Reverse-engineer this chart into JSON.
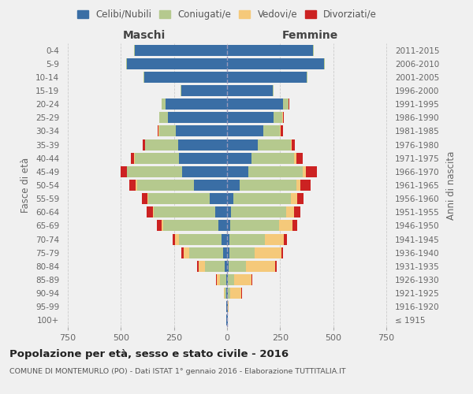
{
  "age_groups": [
    "100+",
    "95-99",
    "90-94",
    "85-89",
    "80-84",
    "75-79",
    "70-74",
    "65-69",
    "60-64",
    "55-59",
    "50-54",
    "45-49",
    "40-44",
    "35-39",
    "30-34",
    "25-29",
    "20-24",
    "15-19",
    "10-14",
    "5-9",
    "0-4"
  ],
  "birth_years": [
    "≤ 1915",
    "1916-1920",
    "1921-1925",
    "1926-1930",
    "1931-1935",
    "1936-1940",
    "1941-1945",
    "1946-1950",
    "1951-1955",
    "1956-1960",
    "1961-1965",
    "1966-1970",
    "1971-1975",
    "1976-1980",
    "1981-1985",
    "1986-1990",
    "1991-1995",
    "1996-2000",
    "2001-2005",
    "2006-2010",
    "2011-2015"
  ],
  "colors": {
    "celibe": "#3a6ea5",
    "coniugato": "#b5c98e",
    "vedovo": "#f5c97a",
    "divorziato": "#cc2222"
  },
  "maschi": {
    "celibe": [
      2,
      2,
      3,
      5,
      10,
      20,
      25,
      40,
      55,
      80,
      155,
      210,
      225,
      230,
      240,
      280,
      290,
      215,
      390,
      470,
      435
    ],
    "coniugato": [
      1,
      2,
      8,
      30,
      95,
      160,
      200,
      260,
      290,
      290,
      270,
      260,
      210,
      155,
      80,
      40,
      20,
      5,
      2,
      5,
      2
    ],
    "vedovo": [
      0,
      0,
      5,
      15,
      30,
      25,
      20,
      10,
      5,
      5,
      5,
      3,
      2,
      2,
      2,
      0,
      0,
      0,
      0,
      0,
      0
    ],
    "divorziato": [
      0,
      0,
      0,
      3,
      5,
      10,
      10,
      20,
      30,
      25,
      30,
      30,
      15,
      10,
      5,
      0,
      0,
      0,
      0,
      0,
      0
    ]
  },
  "femmine": {
    "celibe": [
      2,
      2,
      3,
      5,
      8,
      10,
      12,
      15,
      20,
      30,
      60,
      100,
      115,
      145,
      170,
      220,
      265,
      215,
      375,
      455,
      405
    ],
    "coniugato": [
      0,
      2,
      10,
      30,
      80,
      120,
      165,
      230,
      260,
      270,
      265,
      255,
      200,
      155,
      80,
      40,
      25,
      5,
      2,
      5,
      2
    ],
    "vedovo": [
      1,
      5,
      55,
      80,
      140,
      125,
      90,
      65,
      35,
      30,
      20,
      15,
      10,
      5,
      3,
      2,
      0,
      0,
      0,
      0,
      0
    ],
    "divorziato": [
      0,
      0,
      2,
      5,
      5,
      10,
      15,
      20,
      30,
      30,
      50,
      55,
      30,
      15,
      10,
      5,
      2,
      0,
      0,
      0,
      0
    ]
  },
  "title": "Popolazione per età, sesso e stato civile - 2016",
  "subtitle": "COMUNE DI MONTEMURLO (PO) - Dati ISTAT 1° gennaio 2016 - Elaborazione TUTTITALIA.IT",
  "maschi_label": "Maschi",
  "femmine_label": "Femmine",
  "ylabel": "Fasce di età",
  "ylabel_right": "Anni di nascita",
  "xlim": 780,
  "bg_color": "#f0f0f0",
  "grid_color": "#cccccc",
  "legend_labels": [
    "Celibi/Nubili",
    "Coniugati/e",
    "Vedovi/e",
    "Divorziati/e"
  ]
}
